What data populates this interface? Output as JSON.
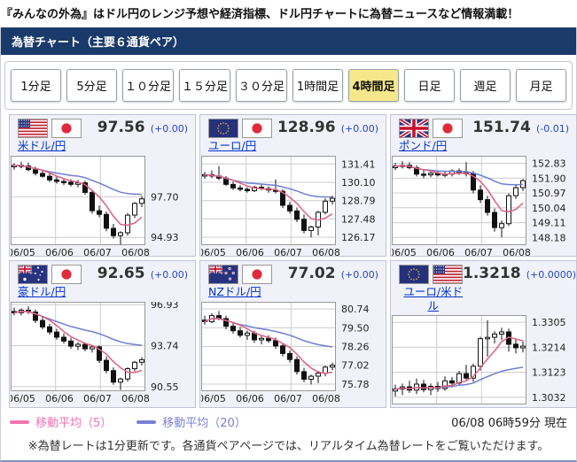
{
  "page": {
    "top_banner": "『みんなの外為』はドル円のレンジ予想や経済指標、ドル円チャートに為替ニュースなど情報満載！",
    "header_title": "為替チャート（主要６通貨ペア）",
    "note": "※為替レートは1分更新です。各通貨ペアページでは、リアルタイム為替レートをご覧いただけます。",
    "timestamp": "06/08 06時59分 現在"
  },
  "colors": {
    "header_bg": "#1a3a6b",
    "active_button_bg": "#f6e88a",
    "link_blue": "#0033cc",
    "change_blue": "#2546c8",
    "ma5_line": "#e06080",
    "ma20_line": "#6e7fd1",
    "candle": "#111111",
    "grid": "#cccccc"
  },
  "timeframe_buttons": [
    {
      "label": "1分足",
      "active": false
    },
    {
      "label": "5分足",
      "active": false
    },
    {
      "label": "１０分足",
      "active": false
    },
    {
      "label": "１５分足",
      "active": false
    },
    {
      "label": "３０分足",
      "active": false
    },
    {
      "label": "1時間足",
      "active": false
    },
    {
      "label": "4時間足",
      "active": true
    },
    {
      "label": "日足",
      "active": false
    },
    {
      "label": "週足",
      "active": false
    },
    {
      "label": "月足",
      "active": false
    }
  ],
  "legend": [
    {
      "label": "移動平均（5）",
      "color": "#f273b2"
    },
    {
      "label": "移動平均（20）",
      "color": "#7b80d6"
    }
  ],
  "chart_data": [
    {
      "type": "candlestick",
      "pair": "米ドル/円",
      "flags": [
        "us",
        "jp"
      ],
      "price": "97.56",
      "change": "(+0.00)",
      "y_labels": [
        "97.70",
        "94.93"
      ],
      "x_labels": [
        "06/05",
        "06/06",
        "06/07",
        "06/08"
      ],
      "y_range": [
        94.4,
        100.5
      ],
      "ma": [
        {
          "name": "MA5",
          "window": 5,
          "color": "#e06080"
        },
        {
          "name": "MA20",
          "window": 20,
          "color": "#6e7fd1"
        }
      ],
      "candles": [
        [
          99.75,
          100.0,
          99.55,
          99.85
        ],
        [
          99.85,
          100.1,
          99.65,
          99.8
        ],
        [
          99.8,
          100.05,
          99.45,
          99.55
        ],
        [
          99.55,
          99.75,
          99.15,
          99.3
        ],
        [
          99.3,
          99.5,
          99.0,
          99.1
        ],
        [
          99.1,
          99.3,
          98.7,
          98.85
        ],
        [
          98.85,
          99.1,
          98.6,
          98.75
        ],
        [
          98.75,
          98.95,
          98.5,
          98.7
        ],
        [
          98.7,
          98.9,
          98.4,
          98.55
        ],
        [
          98.55,
          98.85,
          98.35,
          98.65
        ],
        [
          98.65,
          98.8,
          97.85,
          98.0
        ],
        [
          98.0,
          98.2,
          96.55,
          96.75
        ],
        [
          96.75,
          97.1,
          96.3,
          96.5
        ],
        [
          96.5,
          96.7,
          95.35,
          95.55
        ],
        [
          95.55,
          95.85,
          94.85,
          95.05
        ],
        [
          95.05,
          95.35,
          94.45,
          95.25
        ],
        [
          95.25,
          96.6,
          95.05,
          96.45
        ],
        [
          96.45,
          97.35,
          96.25,
          97.25
        ],
        [
          97.25,
          97.75,
          97.0,
          97.56
        ]
      ]
    },
    {
      "type": "candlestick",
      "pair": "ユーロ/円",
      "flags": [
        "eu",
        "jp"
      ],
      "price": "128.96",
      "change": "(+0.00)",
      "y_labels": [
        "131.41",
        "130.10",
        "128.79",
        "127.48",
        "126.17"
      ],
      "x_labels": [
        "06/05",
        "06/06",
        "06/07",
        "06/08"
      ],
      "y_range": [
        125.6,
        132.0
      ],
      "ma": [
        {
          "name": "MA5",
          "window": 5,
          "color": "#e06080"
        },
        {
          "name": "MA20",
          "window": 20,
          "color": "#6e7fd1"
        }
      ],
      "candles": [
        [
          130.55,
          130.85,
          130.35,
          130.65
        ],
        [
          130.65,
          130.95,
          130.4,
          130.55
        ],
        [
          130.55,
          131.25,
          130.25,
          130.4
        ],
        [
          130.4,
          130.55,
          129.85,
          129.95
        ],
        [
          129.95,
          130.15,
          129.55,
          129.7
        ],
        [
          129.7,
          129.9,
          129.45,
          129.6
        ],
        [
          129.6,
          129.75,
          129.35,
          129.5
        ],
        [
          129.5,
          129.85,
          129.4,
          129.75
        ],
        [
          129.75,
          129.95,
          129.55,
          129.65
        ],
        [
          129.65,
          129.8,
          129.35,
          129.55
        ],
        [
          129.55,
          130.3,
          129.3,
          129.45
        ],
        [
          129.45,
          129.6,
          128.25,
          128.45
        ],
        [
          128.45,
          128.7,
          127.85,
          128.05
        ],
        [
          128.05,
          128.3,
          127.25,
          127.45
        ],
        [
          127.45,
          127.8,
          126.45,
          126.65
        ],
        [
          126.65,
          127.0,
          126.15,
          126.9
        ],
        [
          126.9,
          128.05,
          126.3,
          127.95
        ],
        [
          127.95,
          128.95,
          127.8,
          128.75
        ],
        [
          128.75,
          129.15,
          128.5,
          128.96
        ]
      ]
    },
    {
      "type": "candlestick",
      "pair": "ポンド/円",
      "flags": [
        "uk",
        "jp"
      ],
      "price": "151.74",
      "change": "(-0.01)",
      "y_labels": [
        "152.83",
        "151.90",
        "150.97",
        "150.04",
        "149.11",
        "148.18"
      ],
      "x_labels": [
        "06/05",
        "06/06",
        "06/07",
        "06/08"
      ],
      "y_range": [
        147.7,
        153.3
      ],
      "ma": [
        {
          "name": "MA5",
          "window": 5,
          "color": "#e06080"
        },
        {
          "name": "MA20",
          "window": 20,
          "color": "#6e7fd1"
        }
      ],
      "candles": [
        [
          152.55,
          152.85,
          152.4,
          152.65
        ],
        [
          152.65,
          152.95,
          152.5,
          152.7
        ],
        [
          152.7,
          152.9,
          152.45,
          152.55
        ],
        [
          152.55,
          152.7,
          152.0,
          152.15
        ],
        [
          152.15,
          152.4,
          151.9,
          152.1
        ],
        [
          152.1,
          152.3,
          151.95,
          152.2
        ],
        [
          152.2,
          152.35,
          152.0,
          152.1
        ],
        [
          152.1,
          152.3,
          151.95,
          152.15
        ],
        [
          152.15,
          152.45,
          152.0,
          152.35
        ],
        [
          152.35,
          152.5,
          152.1,
          152.25
        ],
        [
          152.25,
          152.9,
          152.0,
          152.2
        ],
        [
          152.2,
          152.35,
          150.95,
          151.15
        ],
        [
          151.15,
          151.45,
          150.35,
          150.55
        ],
        [
          150.55,
          150.8,
          149.55,
          149.75
        ],
        [
          149.75,
          150.0,
          148.55,
          148.8
        ],
        [
          148.8,
          149.25,
          148.2,
          149.05
        ],
        [
          149.05,
          150.95,
          148.9,
          150.8
        ],
        [
          150.8,
          151.45,
          150.6,
          151.3
        ],
        [
          151.3,
          151.85,
          151.1,
          151.74
        ]
      ]
    },
    {
      "type": "candlestick",
      "pair": "豪ドル/円",
      "flags": [
        "au",
        "jp"
      ],
      "price": "92.65",
      "change": "(+0.00)",
      "y_labels": [
        "96.93",
        "93.74",
        "90.55"
      ],
      "x_labels": [
        "06/05",
        "06/06",
        "06/07",
        "06/08"
      ],
      "y_range": [
        90.2,
        97.15
      ],
      "ma": [
        {
          "name": "MA5",
          "window": 5,
          "color": "#e06080"
        },
        {
          "name": "MA20",
          "window": 20,
          "color": "#6e7fd1"
        }
      ],
      "candles": [
        [
          96.4,
          96.7,
          96.1,
          96.3
        ],
        [
          96.3,
          96.65,
          96.1,
          96.5
        ],
        [
          96.5,
          96.8,
          96.2,
          96.35
        ],
        [
          96.35,
          96.55,
          95.5,
          95.7
        ],
        [
          95.7,
          95.95,
          95.0,
          95.2
        ],
        [
          95.2,
          95.45,
          94.6,
          94.8
        ],
        [
          94.8,
          95.05,
          94.2,
          94.4
        ],
        [
          94.4,
          94.7,
          93.9,
          94.1
        ],
        [
          94.1,
          94.35,
          93.5,
          93.7
        ],
        [
          93.7,
          94.0,
          93.4,
          93.85
        ],
        [
          93.85,
          94.0,
          93.3,
          93.5
        ],
        [
          93.5,
          93.8,
          93.2,
          93.65
        ],
        [
          93.65,
          93.75,
          92.4,
          92.6
        ],
        [
          92.6,
          92.9,
          91.6,
          91.8
        ],
        [
          91.8,
          92.05,
          90.7,
          90.9
        ],
        [
          90.9,
          91.25,
          90.3,
          91.15
        ],
        [
          91.15,
          92.05,
          90.95,
          91.95
        ],
        [
          91.95,
          92.55,
          91.75,
          92.45
        ],
        [
          92.45,
          92.85,
          92.2,
          92.65
        ]
      ]
    },
    {
      "type": "candlestick",
      "pair": "NZドル/円",
      "flags": [
        "nz",
        "jp"
      ],
      "price": "77.02",
      "change": "(+0.00)",
      "y_labels": [
        "80.74",
        "79.50",
        "78.26",
        "77.02",
        "75.78"
      ],
      "x_labels": [
        "06/05",
        "06/06",
        "06/07",
        "06/08"
      ],
      "y_range": [
        75.31,
        81.21
      ],
      "ma": [
        {
          "name": "MA5",
          "window": 5,
          "color": "#e06080"
        },
        {
          "name": "MA20",
          "window": 20,
          "color": "#6e7fd1"
        }
      ],
      "candles": [
        [
          80.0,
          80.3,
          79.7,
          79.9
        ],
        [
          79.9,
          80.45,
          79.8,
          80.3
        ],
        [
          80.3,
          80.6,
          80.0,
          80.1
        ],
        [
          80.1,
          80.3,
          79.4,
          79.6
        ],
        [
          79.6,
          79.85,
          79.1,
          79.3
        ],
        [
          79.3,
          79.55,
          78.85,
          79.0
        ],
        [
          79.0,
          79.3,
          78.7,
          79.15
        ],
        [
          79.15,
          79.3,
          78.5,
          78.7
        ],
        [
          78.7,
          78.95,
          78.4,
          78.8
        ],
        [
          78.8,
          79.0,
          78.5,
          78.65
        ],
        [
          78.65,
          78.85,
          78.1,
          78.3
        ],
        [
          78.3,
          78.5,
          77.6,
          77.8
        ],
        [
          77.8,
          78.0,
          77.2,
          77.4
        ],
        [
          77.4,
          77.6,
          76.4,
          76.6
        ],
        [
          76.6,
          76.85,
          75.9,
          76.1
        ],
        [
          76.1,
          76.4,
          75.75,
          76.3
        ],
        [
          76.3,
          76.65,
          75.85,
          76.5
        ],
        [
          76.5,
          77.0,
          76.3,
          76.9
        ],
        [
          76.9,
          77.2,
          76.7,
          77.02
        ]
      ]
    },
    {
      "type": "candlestick",
      "pair": "ユーロ/米ドル",
      "flags": [
        "eu",
        "us"
      ],
      "price": "1.3218",
      "change": "(+0.0000)",
      "y_labels": [
        "1.3305",
        "1.3214",
        "1.3123",
        "1.3032"
      ],
      "x_labels": [
        "06/05",
        "06/06",
        "06/07",
        "06/08"
      ],
      "y_range": [
        1.3006,
        1.3331
      ],
      "ma": [
        {
          "name": "MA5",
          "window": 5,
          "color": "#e06080"
        },
        {
          "name": "MA20",
          "window": 20,
          "color": "#6e7fd1"
        }
      ],
      "candles": [
        [
          1.3055,
          1.3078,
          1.3035,
          1.3062
        ],
        [
          1.3062,
          1.3082,
          1.304,
          1.307
        ],
        [
          1.307,
          1.3092,
          1.3048,
          1.3058
        ],
        [
          1.3058,
          1.31,
          1.3044,
          1.308
        ],
        [
          1.308,
          1.3095,
          1.305,
          1.306
        ],
        [
          1.306,
          1.3082,
          1.304,
          1.3072
        ],
        [
          1.3072,
          1.3088,
          1.3052,
          1.3064
        ],
        [
          1.3064,
          1.3108,
          1.3056,
          1.3092
        ],
        [
          1.3092,
          1.3106,
          1.3068,
          1.3084
        ],
        [
          1.3084,
          1.3128,
          1.3074,
          1.3118
        ],
        [
          1.3118,
          1.315,
          1.3095,
          1.3102
        ],
        [
          1.3102,
          1.3155,
          1.3088,
          1.3145
        ],
        [
          1.3145,
          1.3252,
          1.313,
          1.3245
        ],
        [
          1.3245,
          1.3312,
          1.318,
          1.325
        ],
        [
          1.325,
          1.3272,
          1.3228,
          1.3262
        ],
        [
          1.3262,
          1.3285,
          1.324,
          1.327
        ],
        [
          1.327,
          1.3282,
          1.3198,
          1.3225
        ],
        [
          1.3225,
          1.3245,
          1.3192,
          1.3212
        ],
        [
          1.3212,
          1.3235,
          1.3195,
          1.3218
        ]
      ]
    }
  ]
}
